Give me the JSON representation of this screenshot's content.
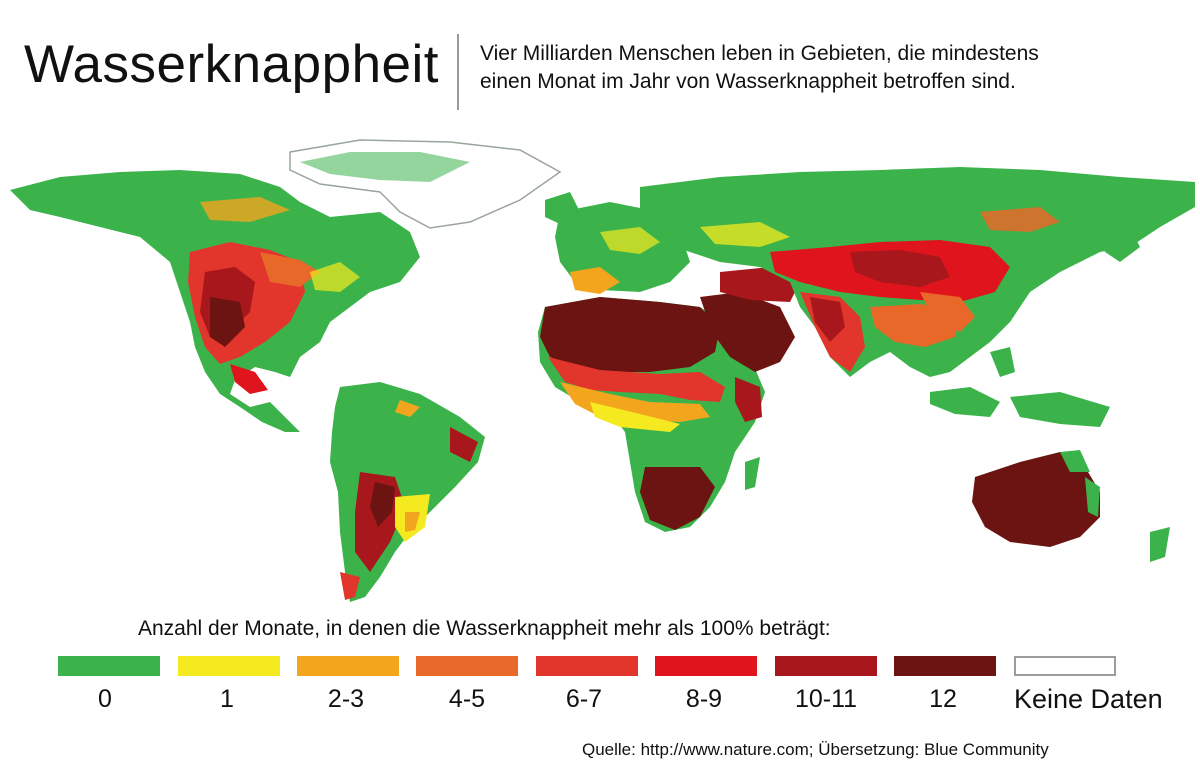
{
  "header": {
    "title": "Wasserknappheit",
    "subtitle_line1": "Vier Milliarden Menschen leben in Gebieten, die mindestens",
    "subtitle_line2": "einen Monat im Jahr von Wasserknappheit betroffen sind."
  },
  "legend": {
    "title": "Anzahl der Monate, in denen die Wasserknappheit mehr als 100% beträgt:",
    "items": [
      {
        "label": "0",
        "color": "#3bb34a"
      },
      {
        "label": "1",
        "color": "#f4ea1f"
      },
      {
        "label": "2-3",
        "color": "#f3a51e"
      },
      {
        "label": "4-5",
        "color": "#e8682a"
      },
      {
        "label": "6-7",
        "color": "#e2352b"
      },
      {
        "label": "8-9",
        "color": "#e0141c"
      },
      {
        "label": "10-11",
        "color": "#a7171b"
      },
      {
        "label": "12",
        "color": "#6b1411"
      },
      {
        "label": "Keine Daten",
        "color": "#ffffff"
      }
    ]
  },
  "source": "Quelle: http://www.nature.com; Übersetzung: Blue Community"
}
